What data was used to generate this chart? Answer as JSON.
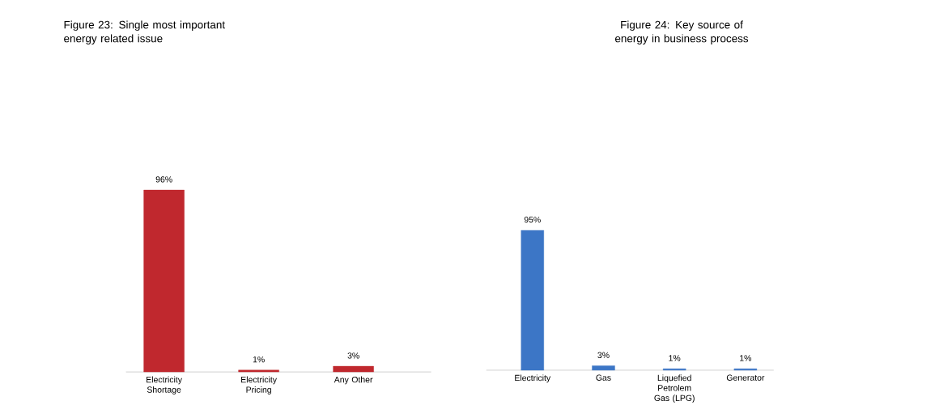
{
  "chart_data": [
    {
      "type": "bar",
      "title": "Figure 23: Single most important energy related issue",
      "categories": [
        "Electricity Shortage",
        "Electricity Pricing",
        "Any Other"
      ],
      "values": [
        96,
        1,
        3
      ],
      "color": "#c0282e",
      "value_labels": [
        "96%",
        "1%",
        "3%"
      ]
    },
    {
      "type": "bar",
      "title": "Figure 24: Key source of energy in business process",
      "categories": [
        "Electricity",
        "Gas",
        "Liquefied Petrolem Gas (LPG)",
        "Generator"
      ],
      "values": [
        95,
        3,
        1,
        1
      ],
      "color": "#3c76c6",
      "value_labels": [
        "95%",
        "3%",
        "1%",
        "1%"
      ]
    }
  ]
}
